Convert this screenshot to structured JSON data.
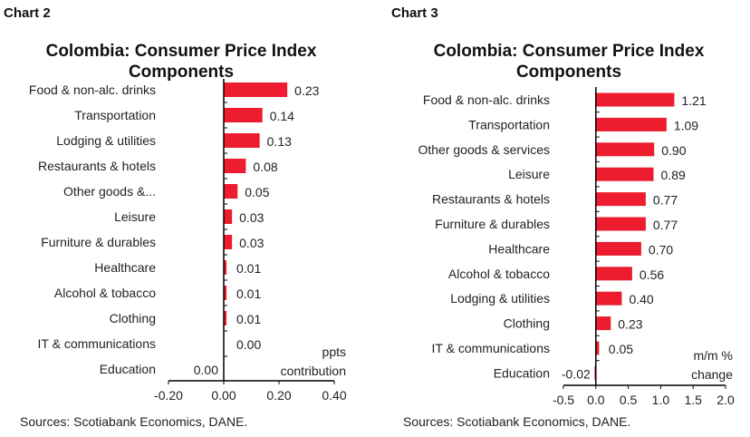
{
  "chart_data": [
    {
      "chart_label": "Chart 2",
      "type": "bar",
      "orientation": "horizontal",
      "title": "Colombia: Consumer Price Index Components",
      "title_lines": [
        "Colombia: Consumer Price Index",
        "Components"
      ],
      "categories": [
        "Food & non-alc. drinks",
        "Transportation",
        "Lodging & utilities",
        "Restaurants & hotels",
        "Other goods &...",
        "Leisure",
        "Furniture & durables",
        "Healthcare",
        "Alcohol & tobacco",
        "Clothing",
        "IT & communications",
        "Education"
      ],
      "values": [
        0.23,
        0.14,
        0.13,
        0.08,
        0.05,
        0.03,
        0.03,
        0.01,
        0.01,
        0.01,
        0.0,
        0.0
      ],
      "data_labels": [
        "0.23",
        "0.14",
        "0.13",
        "0.08",
        "0.05",
        "0.03",
        "0.03",
        "0.01",
        "0.01",
        "0.01",
        "0.00",
        "0.00"
      ],
      "xlim": [
        -0.2,
        0.4
      ],
      "xticks": [
        "-0.20",
        "0.00",
        "0.20",
        "0.40"
      ],
      "xtick_values": [
        -0.2,
        0,
        0.2,
        0.4
      ],
      "unit_label": [
        "ppts",
        "contribution"
      ],
      "source": "Sources:  Scotiabank Economics, DANE.",
      "bar_color": "#ed1c2e",
      "grid": false
    },
    {
      "chart_label": "Chart 3",
      "type": "bar",
      "orientation": "horizontal",
      "title": "Colombia: Consumer Price Index Components",
      "title_lines": [
        "Colombia: Consumer Price Index",
        "Components"
      ],
      "categories": [
        "Food & non-alc. drinks",
        "Transportation",
        "Other goods & services",
        "Leisure",
        "Restaurants & hotels",
        "Furniture & durables",
        "Healthcare",
        "Alcohol & tobacco",
        "Lodging & utilities",
        "Clothing",
        "IT & communications",
        "Education"
      ],
      "values": [
        1.21,
        1.09,
        0.9,
        0.89,
        0.77,
        0.77,
        0.7,
        0.56,
        0.4,
        0.23,
        0.05,
        -0.02
      ],
      "data_labels": [
        "1.21",
        "1.09",
        "0.90",
        "0.89",
        "0.77",
        "0.77",
        "0.70",
        "0.56",
        "0.40",
        "0.23",
        "0.05",
        "-0.02"
      ],
      "xlim": [
        -0.5,
        2.0
      ],
      "xticks": [
        "-0.5",
        "0.0",
        "0.5",
        "1.0",
        "1.5",
        "2.0"
      ],
      "xtick_values": [
        -0.5,
        0,
        0.5,
        1,
        1.5,
        2
      ],
      "unit_label": [
        "m/m %",
        "change"
      ],
      "source": "Sources: Scotiabank Economics, DANE.",
      "bar_color": "#ed1c2e",
      "grid": false
    }
  ]
}
